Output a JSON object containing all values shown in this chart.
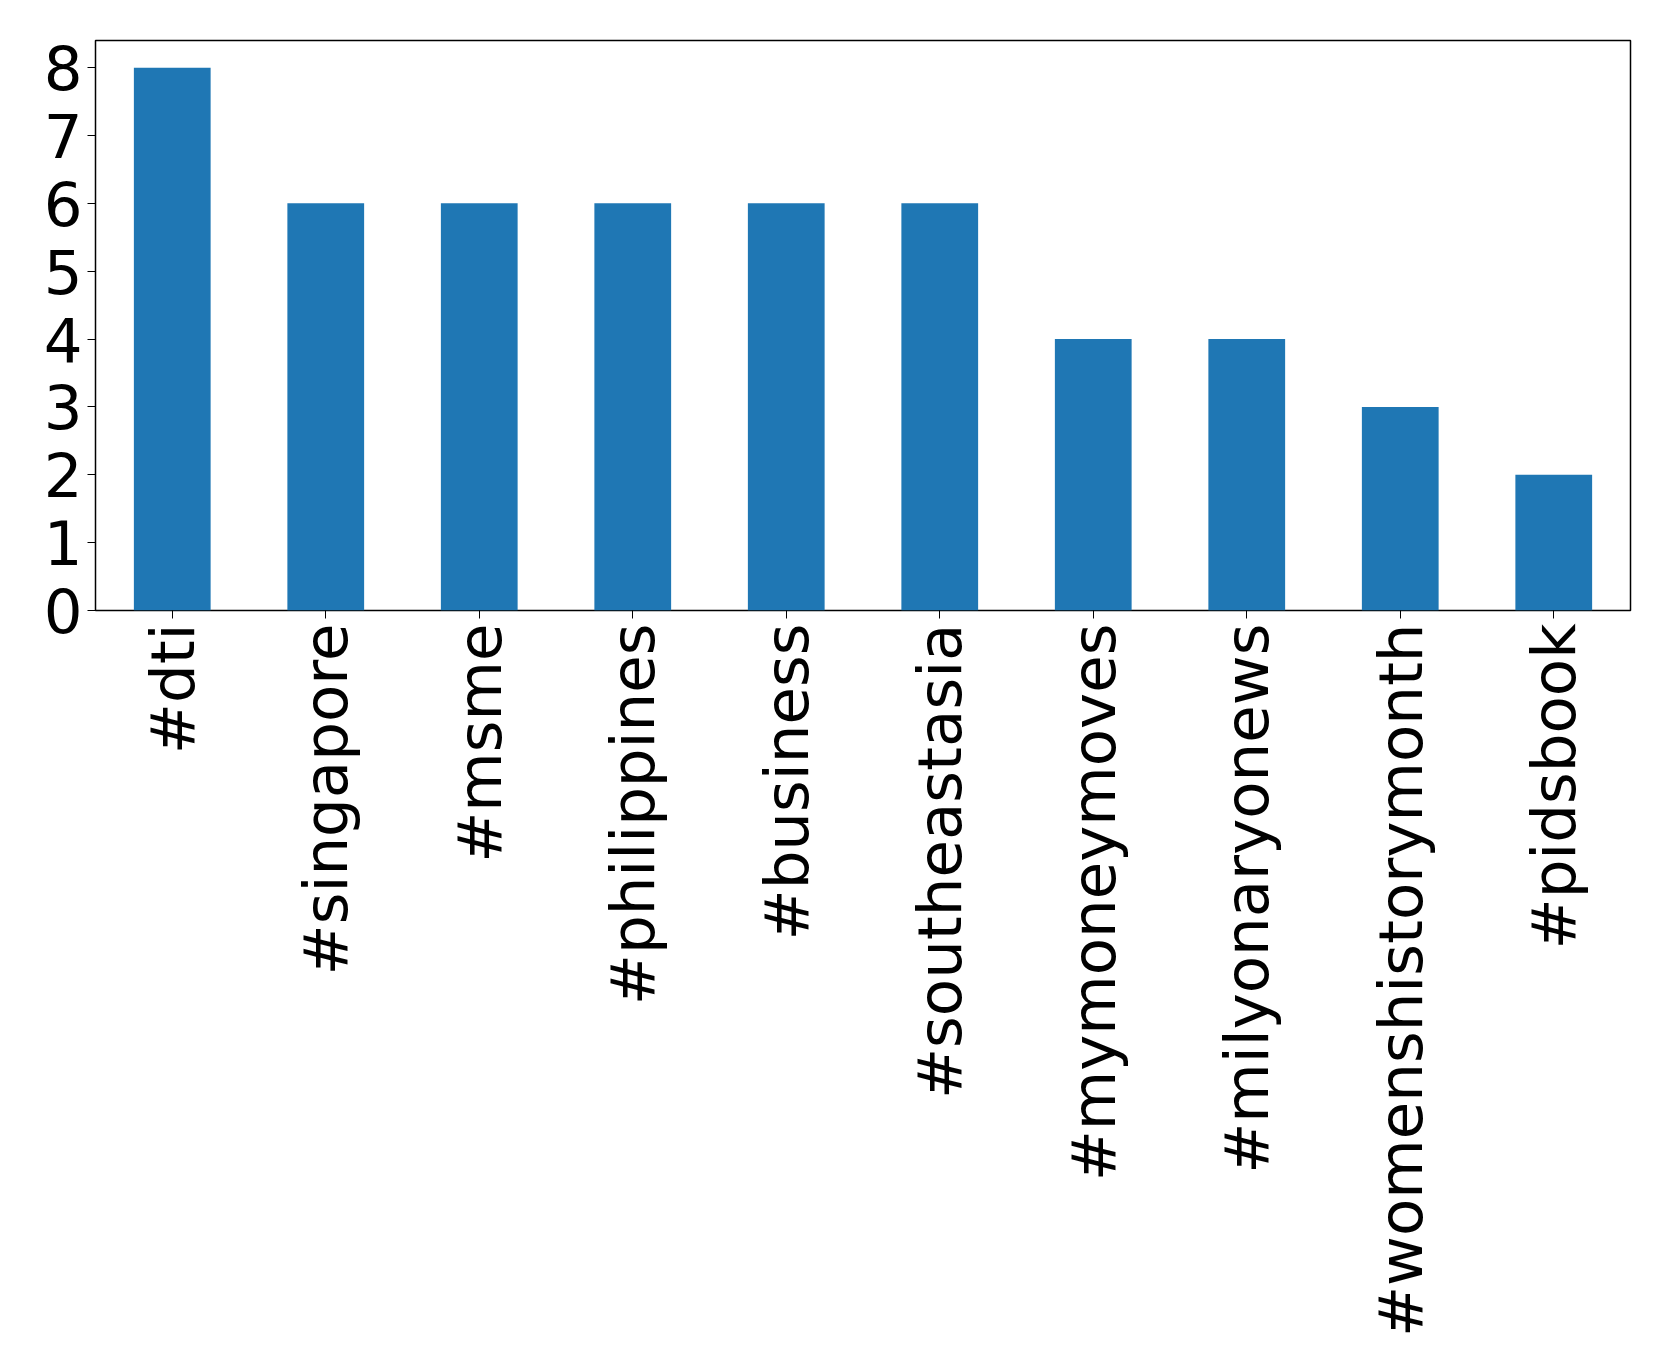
{
  "chart_data": {
    "type": "bar",
    "categories": [
      "#dti",
      "#singapore",
      "#msme",
      "#philippines",
      "#business",
      "#southeastasia",
      "#mymoneymoves",
      "#milyonaryonews",
      "#womenshistorymonth",
      "#pidsbook"
    ],
    "values": [
      8,
      6,
      6,
      6,
      6,
      6,
      4,
      4,
      3,
      2
    ],
    "color": "#1f77b4",
    "ylim": [
      0,
      8.4
    ],
    "yticks": [
      0,
      1,
      2,
      3,
      4,
      5,
      6,
      7,
      8
    ],
    "grid": false
  }
}
